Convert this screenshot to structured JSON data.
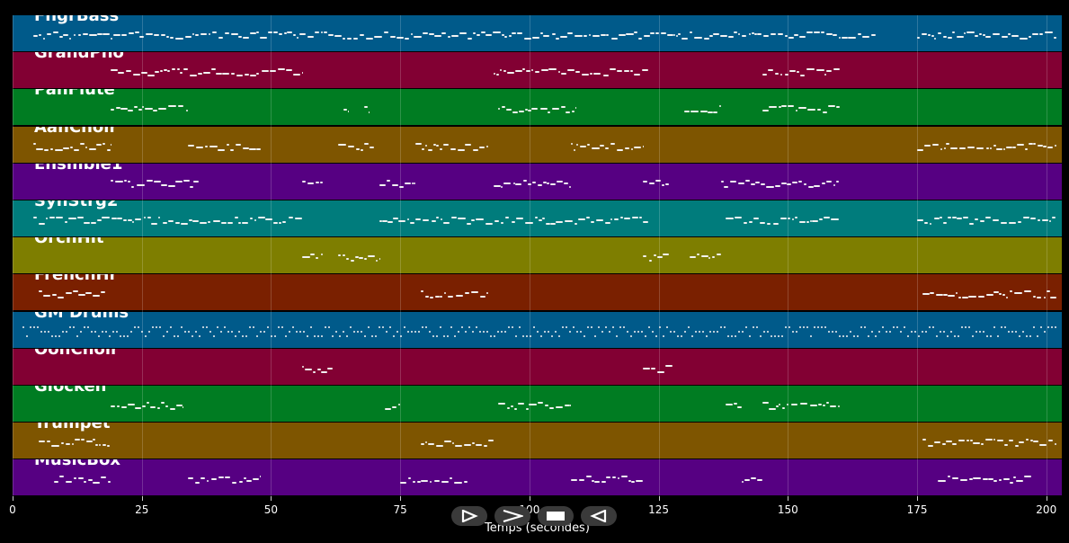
{
  "tracks": [
    {
      "name": "FngrBass",
      "color": "#005a8a"
    },
    {
      "name": "GrandPno",
      "color": "#820033"
    },
    {
      "name": "PanFlute",
      "color": "#007c22"
    },
    {
      "name": "AahChoir",
      "color": "#7e5500"
    },
    {
      "name": "Ensmble1",
      "color": "#560082"
    },
    {
      "name": "SynStrg2",
      "color": "#007c7c"
    },
    {
      "name": "OrchHit",
      "color": "#7e7e00"
    },
    {
      "name": "FrenchHr",
      "color": "#7a2000"
    },
    {
      "name": "GM Drums",
      "color": "#005a8a"
    },
    {
      "name": "OohChoir",
      "color": "#820033"
    },
    {
      "name": "Glocken",
      "color": "#007c22"
    },
    {
      "name": "Trumpet",
      "color": "#7e5500"
    },
    {
      "name": "MusicBox",
      "color": "#560082"
    }
  ],
  "chart_data": {
    "type": "scatter",
    "x_ticks": [
      0,
      25,
      50,
      75,
      100,
      125,
      150,
      175,
      200
    ],
    "xlabel": "Temps (secondes)",
    "xlim": [
      0,
      203
    ],
    "grid": true,
    "activity": [
      {
        "track": "FngrBass",
        "segments": [
          [
            4,
            167
          ],
          [
            175,
            202
          ]
        ]
      },
      {
        "track": "GrandPno",
        "segments": [
          [
            19,
            56
          ],
          [
            93,
            123
          ],
          [
            145,
            160
          ]
        ]
      },
      {
        "track": "PanFlute",
        "segments": [
          [
            19,
            34
          ],
          [
            64,
            65
          ],
          [
            68,
            69
          ],
          [
            94,
            109
          ],
          [
            130,
            137
          ],
          [
            145,
            160
          ]
        ]
      },
      {
        "track": "AahChoir",
        "segments": [
          [
            4,
            19
          ],
          [
            34,
            48
          ],
          [
            63,
            70
          ],
          [
            78,
            92
          ],
          [
            108,
            122
          ],
          [
            175,
            202
          ]
        ]
      },
      {
        "track": "Ensmble1",
        "segments": [
          [
            19,
            36
          ],
          [
            56,
            60
          ],
          [
            71,
            78
          ],
          [
            93,
            108
          ],
          [
            122,
            127
          ],
          [
            137,
            160
          ]
        ]
      },
      {
        "track": "SynStrg2",
        "segments": [
          [
            4,
            56
          ],
          [
            71,
            123
          ],
          [
            138,
            160
          ],
          [
            175,
            202
          ]
        ]
      },
      {
        "track": "OrchHit",
        "segments": [
          [
            56,
            60
          ],
          [
            63,
            71
          ],
          [
            122,
            127
          ],
          [
            131,
            137
          ]
        ]
      },
      {
        "track": "FrenchHr",
        "segments": [
          [
            5,
            18
          ],
          [
            79,
            92
          ],
          [
            176,
            202
          ]
        ]
      },
      {
        "track": "GM Drums",
        "segments": [
          [
            2,
            202
          ]
        ]
      },
      {
        "track": "OohChoir",
        "segments": [
          [
            56,
            62
          ],
          [
            122,
            128
          ]
        ]
      },
      {
        "track": "Glocken",
        "segments": [
          [
            19,
            33
          ],
          [
            72,
            75
          ],
          [
            94,
            108
          ],
          [
            138,
            141
          ],
          [
            145,
            160
          ]
        ]
      },
      {
        "track": "Trumpet",
        "segments": [
          [
            5,
            19
          ],
          [
            79,
            93
          ],
          [
            176,
            202
          ]
        ]
      },
      {
        "track": "MusicBox",
        "segments": [
          [
            8,
            19
          ],
          [
            34,
            48
          ],
          [
            75,
            88
          ],
          [
            108,
            122
          ],
          [
            141,
            145
          ],
          [
            179,
            197
          ]
        ]
      }
    ]
  },
  "controls": [
    {
      "icon": "play-icon"
    },
    {
      "icon": "fast-forward-icon"
    },
    {
      "icon": "stop-icon"
    },
    {
      "icon": "rewind-icon"
    }
  ]
}
